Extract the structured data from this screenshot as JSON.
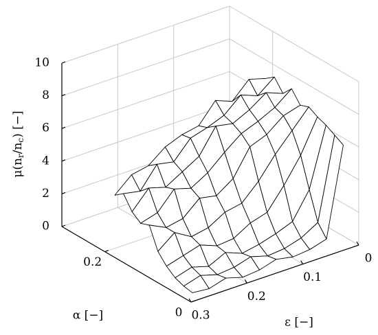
{
  "chart_data": {
    "type": "surface3d",
    "xlabel": "ε [−]",
    "ylabel": "α [−]",
    "zlabel": [
      "μ(n",
      "r",
      "/n",
      "c",
      ") [−]"
    ],
    "x": [
      0.02,
      0.05,
      0.08,
      0.11,
      0.14,
      0.17,
      0.2,
      0.23,
      0.26,
      0.29
    ],
    "y": [
      0.01,
      0.03,
      0.05,
      0.07,
      0.09,
      0.11,
      0.13,
      0.15,
      0.17,
      0.19
    ],
    "z": [
      [
        6.2,
        0.8,
        0.5,
        0.4,
        0.6,
        0.3,
        0.2,
        0.5,
        0.2,
        0.3
      ],
      [
        6.5,
        1.5,
        0.9,
        0.6,
        0.5,
        0.8,
        0.5,
        0.4,
        0.7,
        0.4
      ],
      [
        6.8,
        3.2,
        1.6,
        1.2,
        0.9,
        0.7,
        1.1,
        0.6,
        0.9,
        0.6
      ],
      [
        7.0,
        5.0,
        3.5,
        2.2,
        1.9,
        1.3,
        1.2,
        1.6,
        1.3,
        1.0
      ],
      [
        7.3,
        6.2,
        5.1,
        3.8,
        2.8,
        2.6,
        2.0,
        1.8,
        2.4,
        1.6
      ],
      [
        7.1,
        6.8,
        6.0,
        5.6,
        4.0,
        3.3,
        3.5,
        2.6,
        2.4,
        2.9
      ],
      [
        7.8,
        7.0,
        6.5,
        6.1,
        5.3,
        4.4,
        3.8,
        4.1,
        3.0,
        2.7
      ],
      [
        7.2,
        7.6,
        6.9,
        6.4,
        6.6,
        5.1,
        4.5,
        3.9,
        4.2,
        3.1
      ],
      [
        7.9,
        7.1,
        7.5,
        6.6,
        6.2,
        5.9,
        4.8,
        5.0,
        3.7,
        3.9
      ],
      [
        7.5,
        7.8,
        6.8,
        7.2,
        6.0,
        5.8,
        5.4,
        4.6,
        4.4,
        3.5
      ]
    ],
    "xlim": [
      0,
      0.3
    ],
    "ylim": [
      0,
      0.3
    ],
    "zlim": [
      0,
      10
    ],
    "xticks": [
      0,
      0.1,
      0.2,
      0.3
    ],
    "yticks": [
      0,
      0.2
    ],
    "zticks": [
      0,
      2,
      4,
      6,
      8,
      10
    ],
    "grid": true,
    "color": "#ffffff",
    "edge_color": "#000000"
  }
}
